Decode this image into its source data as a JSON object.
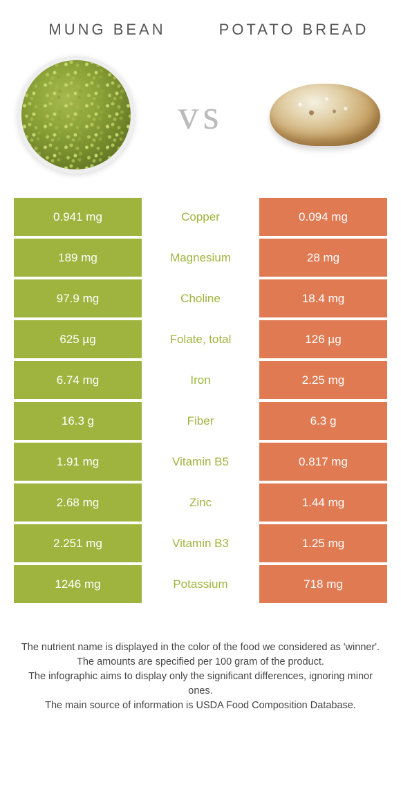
{
  "colors": {
    "left": "#9fb43e",
    "right": "#e07a52",
    "mid_bg": "#ffffff"
  },
  "header": {
    "left_title": "Mung bean",
    "right_title": "Potato bread",
    "vs": "vs"
  },
  "rows": [
    {
      "nutrient": "Copper",
      "left": "0.941 mg",
      "right": "0.094 mg",
      "winner": "left"
    },
    {
      "nutrient": "Magnesium",
      "left": "189 mg",
      "right": "28 mg",
      "winner": "left"
    },
    {
      "nutrient": "Choline",
      "left": "97.9 mg",
      "right": "18.4 mg",
      "winner": "left"
    },
    {
      "nutrient": "Folate, total",
      "left": "625 µg",
      "right": "126 µg",
      "winner": "left"
    },
    {
      "nutrient": "Iron",
      "left": "6.74 mg",
      "right": "2.25 mg",
      "winner": "left"
    },
    {
      "nutrient": "Fiber",
      "left": "16.3 g",
      "right": "6.3 g",
      "winner": "left"
    },
    {
      "nutrient": "Vitamin B5",
      "left": "1.91 mg",
      "right": "0.817 mg",
      "winner": "left"
    },
    {
      "nutrient": "Zinc",
      "left": "2.68 mg",
      "right": "1.44 mg",
      "winner": "left"
    },
    {
      "nutrient": "Vitamin B3",
      "left": "2.251 mg",
      "right": "1.25 mg",
      "winner": "left"
    },
    {
      "nutrient": "Potassium",
      "left": "1246 mg",
      "right": "718 mg",
      "winner": "left"
    }
  ],
  "footer": {
    "line1": "The nutrient name is displayed in the color of the food we considered as 'winner'.",
    "line2": "The amounts are specified per 100 gram of the product.",
    "line3": "The infographic aims to display only the significant differences, ignoring minor ones.",
    "line4": "The main source of information is USDA Food Composition Database."
  }
}
